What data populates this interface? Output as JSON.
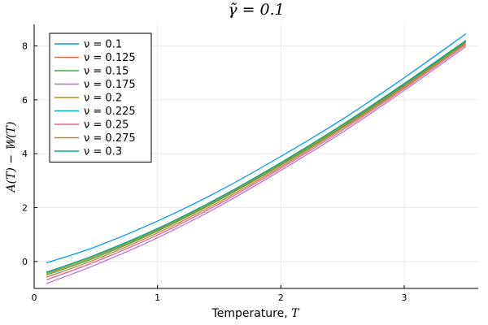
{
  "chart_data": {
    "type": "line",
    "title": "γ̃ = 0.1",
    "xlabel": "Temperature, ",
    "xlabel_var": "T",
    "ylabel": "A(T) − 𝕎(T)",
    "xlim": [
      0,
      3.6
    ],
    "ylim": [
      -1.0,
      8.8
    ],
    "xticks": [
      0,
      1,
      2,
      3
    ],
    "yticks": [
      0,
      2,
      4,
      6,
      8
    ],
    "grid": true,
    "legend_position": "top-left",
    "series": [
      {
        "name": "ν = 0.1",
        "color": "#009af9",
        "x": [
          0.1,
          0.5,
          1.0,
          1.5,
          2.0,
          2.5,
          3.0,
          3.5
        ],
        "y": [
          -0.05,
          0.55,
          1.5,
          2.62,
          3.9,
          5.28,
          6.82,
          8.45
        ]
      },
      {
        "name": "ν = 0.125",
        "color": "#e26f46",
        "x": [
          0.1,
          0.5,
          1.0,
          1.5,
          2.0,
          2.5,
          3.0,
          3.5
        ],
        "y": [
          -0.4,
          0.25,
          1.22,
          2.37,
          3.67,
          5.08,
          6.6,
          8.2
        ]
      },
      {
        "name": "ν = 0.15",
        "color": "#3da44d",
        "x": [
          0.1,
          0.5,
          1.0,
          1.5,
          2.0,
          2.5,
          3.0,
          3.5
        ],
        "y": [
          -0.5,
          0.15,
          1.13,
          2.28,
          3.58,
          4.99,
          6.52,
          8.15
        ]
      },
      {
        "name": "ν = 0.175",
        "color": "#c271d2",
        "x": [
          0.1,
          0.5,
          1.0,
          1.5,
          2.0,
          2.5,
          3.0,
          3.5
        ],
        "y": [
          -0.82,
          -0.12,
          0.88,
          2.05,
          3.38,
          4.8,
          6.35,
          7.98
        ]
      },
      {
        "name": "ν = 0.2",
        "color": "#ac8d18",
        "x": [
          0.1,
          0.5,
          1.0,
          1.5,
          2.0,
          2.5,
          3.0,
          3.5
        ],
        "y": [
          -0.45,
          0.2,
          1.17,
          2.32,
          3.62,
          5.03,
          6.56,
          8.18
        ]
      },
      {
        "name": "ν = 0.225",
        "color": "#00a9ad",
        "x": [
          0.1,
          0.5,
          1.0,
          1.5,
          2.0,
          2.5,
          3.0,
          3.5
        ],
        "y": [
          -0.4,
          0.25,
          1.22,
          2.37,
          3.67,
          5.08,
          6.6,
          8.2
        ]
      },
      {
        "name": "ν = 0.25",
        "color": "#ed5d92",
        "x": [
          0.1,
          0.5,
          1.0,
          1.5,
          2.0,
          2.5,
          3.0,
          3.5
        ],
        "y": [
          -0.68,
          0.0,
          0.98,
          2.14,
          3.46,
          4.88,
          6.42,
          8.05
        ]
      },
      {
        "name": "ν = 0.275",
        "color": "#c68125",
        "x": [
          0.1,
          0.5,
          1.0,
          1.5,
          2.0,
          2.5,
          3.0,
          3.5
        ],
        "y": [
          -0.58,
          0.08,
          1.06,
          2.21,
          3.52,
          4.94,
          6.47,
          8.1
        ]
      },
      {
        "name": "ν = 0.3",
        "color": "#00a98d",
        "x": [
          0.1,
          0.5,
          1.0,
          1.5,
          2.0,
          2.5,
          3.0,
          3.5
        ],
        "y": [
          -0.4,
          0.25,
          1.22,
          2.37,
          3.67,
          5.08,
          6.6,
          8.2
        ]
      }
    ]
  }
}
